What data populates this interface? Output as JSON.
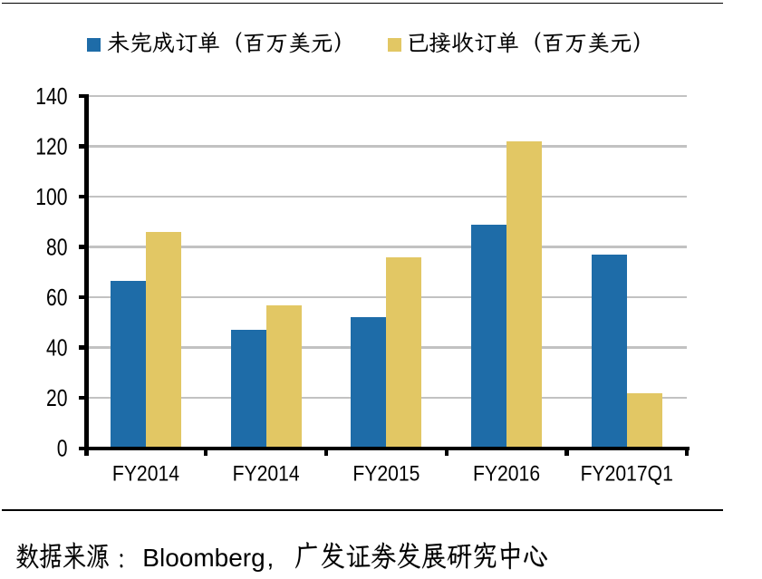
{
  "chart_data": {
    "type": "bar",
    "categories": [
      "FY2014",
      "FY2014",
      "FY2015",
      "FY2016",
      "FY2017Q1"
    ],
    "series": [
      {
        "name": "未完成订单（百万美元）",
        "color": "#1E6CA8",
        "values": [
          66.5,
          47,
          52,
          89,
          77
        ]
      },
      {
        "name": "已接收订单（百万美元）",
        "color": "#E2C764",
        "values": [
          86,
          57,
          76,
          122,
          22
        ]
      }
    ],
    "title": "",
    "xlabel": "",
    "ylabel": "",
    "ylim": [
      0,
      140
    ],
    "ytick_step": 20,
    "ytick_labels": [
      "0",
      "20",
      "40",
      "60",
      "80",
      "100",
      "120",
      "140"
    ],
    "grid": "horizontal",
    "legend_position": "top"
  },
  "legend": {
    "items": [
      {
        "label": "未完成订单（百万美元）",
        "color": "#1E6CA8"
      },
      {
        "label": "已接收订单（百万美元）",
        "color": "#E2C764"
      }
    ]
  },
  "footer": {
    "source_note": "数据来源：Bloomberg，广发证券发展研究中心",
    "runs": [
      {
        "text": "数据来源："
      },
      {
        "text": "Bloomberg"
      },
      {
        "text": "，"
      },
      {
        "text": "广发证券发展研究中心"
      }
    ]
  },
  "colors": {
    "series1": "#1E6CA8",
    "series2": "#E2C764",
    "gridline": "#C2C2C2",
    "axis": "#000000",
    "text": "#000000",
    "background": "#FFFFFF"
  }
}
